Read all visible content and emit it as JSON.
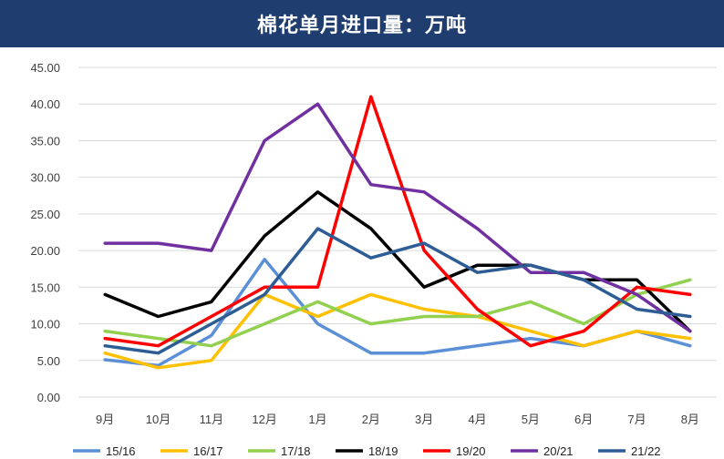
{
  "header": {
    "title": "棉花单月进口量：万吨"
  },
  "chart_data": {
    "type": "line",
    "title": "棉花单月进口量：万吨",
    "categories": [
      "9月",
      "10月",
      "11月",
      "12月",
      "1月",
      "2月",
      "3月",
      "4月",
      "5月",
      "6月",
      "7月",
      "8月"
    ],
    "y_ticks": [
      "0.00",
      "5.00",
      "10.00",
      "15.00",
      "20.00",
      "25.00",
      "30.00",
      "35.00",
      "40.00",
      "45.00"
    ],
    "ylim": [
      0,
      45
    ],
    "grid": true,
    "legend_position": "bottom",
    "series": [
      {
        "name": "15/16",
        "color": "#5b8fd6",
        "values": [
          5.1,
          4.3,
          8.4,
          18.8,
          10,
          6,
          6,
          7,
          8,
          7,
          9,
          7
        ]
      },
      {
        "name": "16/17",
        "color": "#ffc000",
        "values": [
          6,
          4,
          5,
          14,
          11,
          14,
          12,
          11,
          9,
          7,
          9,
          8
        ]
      },
      {
        "name": "17/18",
        "color": "#92d050",
        "values": [
          9,
          8,
          7,
          10,
          13,
          10,
          11,
          11,
          13,
          10,
          14,
          16
        ]
      },
      {
        "name": "18/19",
        "color": "#000000",
        "values": [
          14,
          11,
          13,
          22,
          28,
          23,
          15,
          18,
          18,
          16,
          16,
          9
        ]
      },
      {
        "name": "19/20",
        "color": "#ff0000",
        "values": [
          8,
          7,
          11,
          15,
          15,
          41,
          20,
          12,
          7,
          9,
          15,
          14
        ]
      },
      {
        "name": "20/21",
        "color": "#7030a0",
        "values": [
          21,
          21,
          20,
          35,
          40,
          29,
          28,
          23,
          17,
          17,
          14,
          9
        ]
      },
      {
        "name": "21/22",
        "color": "#2e5c95",
        "values": [
          7,
          6,
          10,
          14,
          23,
          19,
          21,
          17,
          18,
          16,
          12,
          11
        ]
      }
    ]
  }
}
